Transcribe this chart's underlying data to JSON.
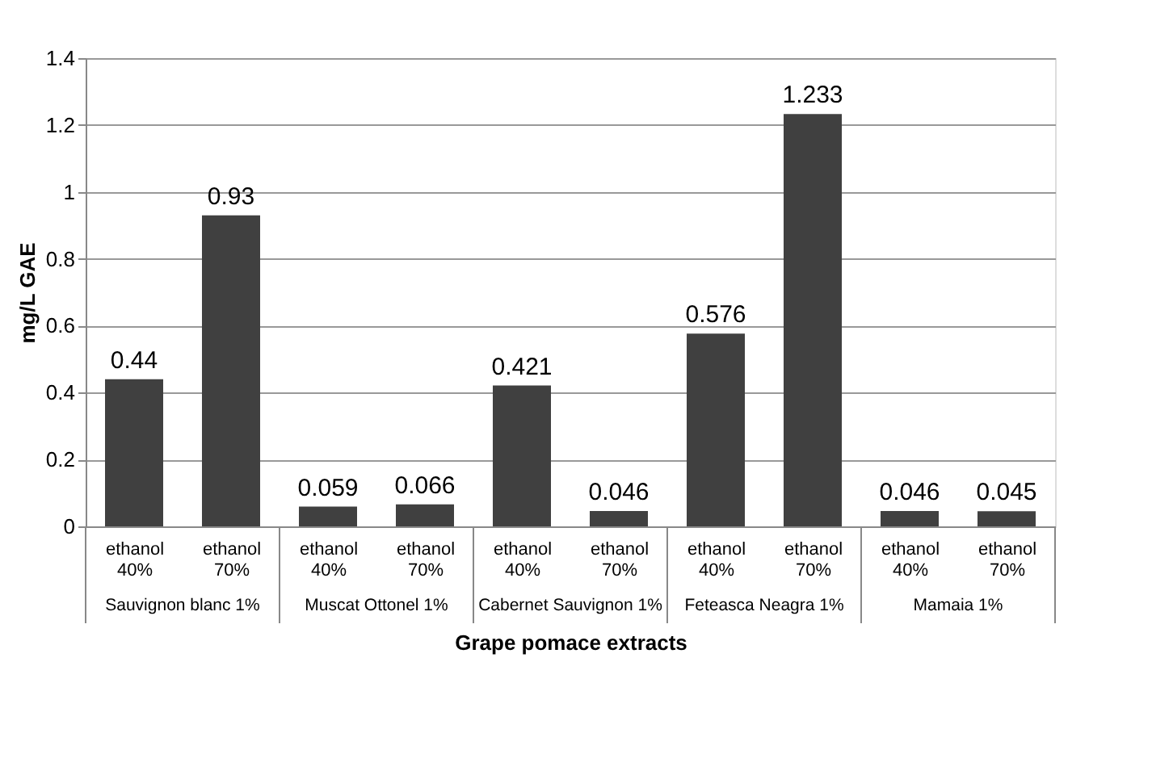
{
  "chart_data": {
    "type": "bar",
    "xlabel": "Grape pomace extracts",
    "ylabel": "mg/L GAE",
    "categories": [
      "ethanol 40%",
      "ethanol 70%",
      "ethanol 40%",
      "ethanol 70%",
      "ethanol 40%",
      "ethanol 70%",
      "ethanol 40%",
      "ethanol 70%",
      "ethanol 40%",
      "ethanol 70%"
    ],
    "values": [
      0.44,
      0.93,
      0.059,
      0.066,
      0.421,
      0.046,
      0.576,
      1.233,
      0.046,
      0.045
    ],
    "color": "#404040",
    "ylim": [
      0,
      1.4
    ],
    "yticks": [
      0,
      0.2,
      0.4,
      0.6,
      0.8,
      1,
      1.2,
      1.4
    ],
    "grid": "y",
    "data_labels": true,
    "annotations": [
      "Sauvignon blanc 1%",
      "Muscat Ottonel 1%",
      "Cabernet Sauvignon 1%",
      "Feteasca Neagra 1%",
      "Mamaia 1%"
    ]
  }
}
